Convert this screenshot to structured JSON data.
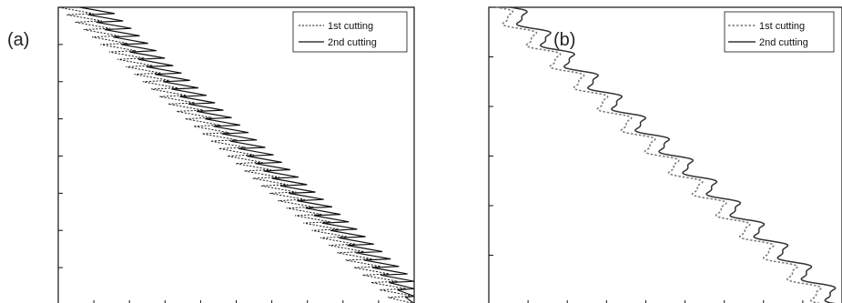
{
  "chart_data": [
    {
      "type": "line",
      "panel_label": "(a)",
      "legend": {
        "placement": "top-right",
        "entries": [
          {
            "label": "1st cutting",
            "style": "dotted"
          },
          {
            "label": "2nd cutting",
            "style": "solid"
          }
        ]
      },
      "xlim": [
        0,
        1
      ],
      "ylim": [
        0,
        1
      ],
      "grid": false,
      "x_ticks": 10,
      "y_ticks": 8,
      "series": [
        {
          "name": "1st cutting",
          "style": "dotted",
          "start": [
            0.0,
            1.0
          ],
          "end": [
            0.95,
            0.0
          ],
          "teeth": 40,
          "amplitude": 0.075,
          "shape": "sawtooth"
        },
        {
          "name": "2nd cutting",
          "style": "solid",
          "start": [
            0.06,
            1.0
          ],
          "end": [
            1.0,
            0.0
          ],
          "teeth": 40,
          "amplitude": 0.075,
          "shape": "sawtooth"
        }
      ]
    },
    {
      "type": "line",
      "panel_label": "(b)",
      "legend": {
        "placement": "top-right",
        "entries": [
          {
            "label": "1st cutting",
            "style": "dotted"
          },
          {
            "label": "2nd cutting",
            "style": "solid"
          }
        ]
      },
      "xlim": [
        0,
        1
      ],
      "ylim": [
        0,
        1
      ],
      "grid": false,
      "x_ticks": 9,
      "y_ticks": 6,
      "series": [
        {
          "name": "1st cutting",
          "style": "dotted",
          "start": [
            0.02,
            1.0
          ],
          "end": [
            0.96,
            0.0
          ],
          "waves": 14,
          "amplitude": 0.03,
          "shape": "wave"
        },
        {
          "name": "2nd cutting",
          "style": "solid",
          "start": [
            0.06,
            1.0
          ],
          "end": [
            1.0,
            0.0
          ],
          "waves": 14,
          "amplitude": 0.03,
          "shape": "wave"
        }
      ]
    }
  ]
}
